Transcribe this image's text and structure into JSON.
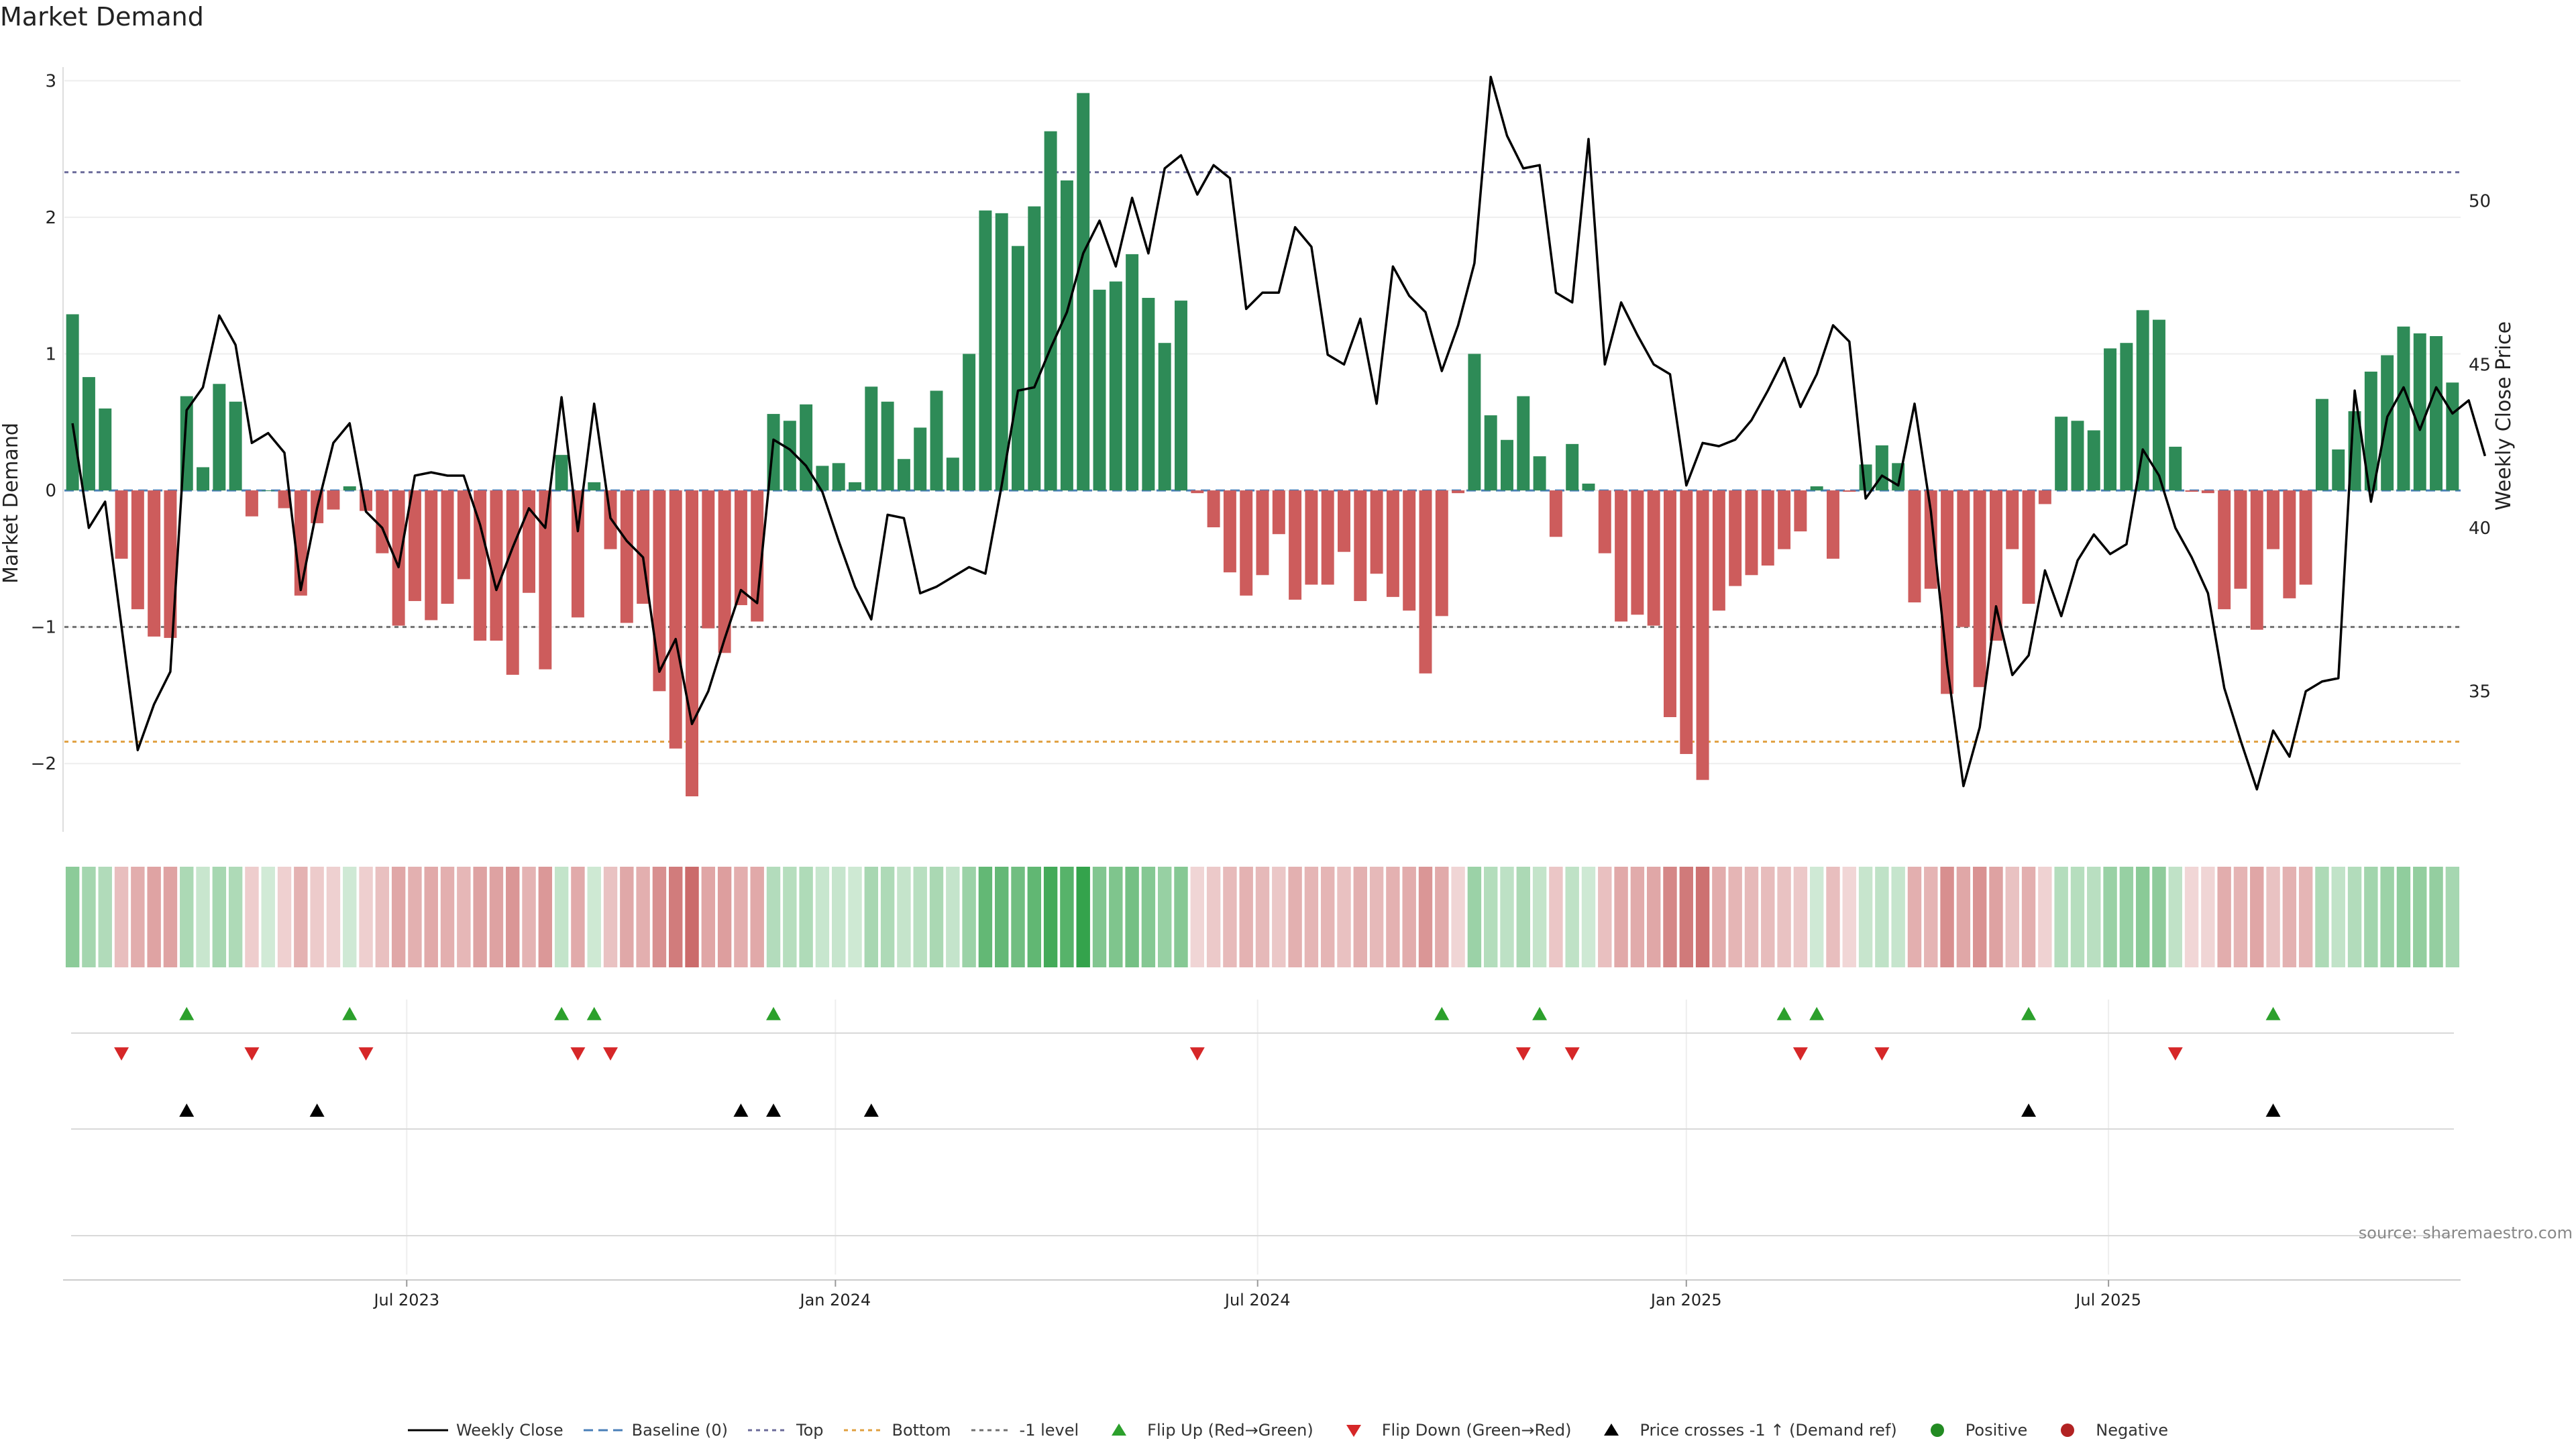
{
  "title": "Market Demand",
  "source": "source: sharemaestro.com",
  "colors": {
    "positive": "#2e8b57",
    "negative": "#cd5c5c",
    "price": "#000000",
    "baseline": "#4a7fb8",
    "top": "#6b6b9a",
    "bottom": "#e0a040",
    "minus_one": "#707070",
    "flip_up": "#2ca02c",
    "flip_down": "#d62728",
    "cross": "#000000",
    "dot_positive": "#228b22",
    "dot_negative": "#b22222"
  },
  "chart_data": {
    "type": "bar",
    "title": "Market Demand",
    "ylabel": "Market Demand",
    "y2label": "Weekly Close Price",
    "ylim": [
      -2.5,
      3.1
    ],
    "y2lim": [
      30.7,
      54.1
    ],
    "yticks": [
      -2,
      -1,
      0,
      1,
      2,
      3
    ],
    "y2ticks": [
      35,
      40,
      45,
      50
    ],
    "x_start_week": 0,
    "x_tick_labels": [
      {
        "label": "Jul 2023",
        "week": 20.5
      },
      {
        "label": "Jan 2024",
        "week": 46.8
      },
      {
        "label": "Jul 2024",
        "week": 72.7
      },
      {
        "label": "Jan 2025",
        "week": 99.0
      },
      {
        "label": "Jul 2025",
        "week": 124.9
      }
    ],
    "reference_lines": {
      "baseline": 0,
      "top": 2.33,
      "bottom": -1.84,
      "minus_one": -1.0
    },
    "series": [
      {
        "name": "Market Demand",
        "values": [
          1.29,
          0.83,
          0.6,
          -0.5,
          -0.87,
          -1.07,
          -1.08,
          0.69,
          0.17,
          0.78,
          0.65,
          -0.19,
          0.0,
          -0.13,
          -0.77,
          -0.24,
          -0.14,
          0.03,
          -0.15,
          -0.46,
          -0.99,
          -0.81,
          -0.95,
          -0.83,
          -0.65,
          -1.1,
          -1.1,
          -1.35,
          -0.75,
          -1.31,
          0.26,
          -0.93,
          0.06,
          -0.43,
          -0.97,
          -0.83,
          -1.47,
          -1.89,
          -2.24,
          -1.01,
          -1.19,
          -0.84,
          -0.96,
          0.56,
          0.51,
          0.63,
          0.18,
          0.2,
          0.06,
          0.76,
          0.65,
          0.23,
          0.46,
          0.73,
          0.24,
          1.0,
          2.05,
          2.03,
          1.79,
          2.08,
          2.63,
          2.27,
          2.91,
          1.47,
          1.53,
          1.73,
          1.41,
          1.08,
          1.39,
          -0.02,
          -0.27,
          -0.6,
          -0.77,
          -0.62,
          -0.32,
          -0.8,
          -0.69,
          -0.69,
          -0.45,
          -0.81,
          -0.61,
          -0.78,
          -0.88,
          -1.34,
          -0.92,
          -0.02,
          1.0,
          0.55,
          0.37,
          0.69,
          0.25,
          -0.34,
          0.34,
          0.05,
          -0.46,
          -0.96,
          -0.91,
          -0.99,
          -1.66,
          -1.93,
          -2.12,
          -0.88,
          -0.7,
          -0.62,
          -0.55,
          -0.43,
          -0.3,
          0.03,
          -0.5,
          -0.01,
          0.19,
          0.33,
          0.2,
          -0.82,
          -0.72,
          -1.49,
          -1.0,
          -1.44,
          -1.1,
          -0.43,
          -0.83,
          -0.1,
          0.54,
          0.51,
          0.44,
          1.04,
          1.08,
          1.32,
          1.25,
          0.32,
          -0.01,
          -0.02,
          -0.87,
          -0.72,
          -1.02,
          -0.43,
          -0.79,
          -0.69,
          0.67,
          0.3,
          0.58,
          0.87,
          0.99,
          1.2,
          1.15,
          1.13,
          0.79
        ]
      },
      {
        "name": "Weekly Close",
        "axis": "right",
        "values": [
          43.2,
          40.0,
          40.8,
          37.0,
          33.2,
          34.6,
          35.6,
          43.6,
          44.3,
          46.5,
          45.6,
          42.6,
          42.9,
          42.3,
          38.1,
          40.6,
          42.6,
          43.2,
          40.5,
          40.0,
          38.8,
          41.6,
          41.7,
          41.6,
          41.6,
          40.1,
          38.1,
          39.4,
          40.6,
          40.0,
          44.0,
          39.9,
          43.8,
          40.3,
          39.6,
          39.1,
          35.6,
          36.6,
          34.0,
          35.0,
          36.6,
          38.1,
          37.7,
          42.7,
          42.4,
          41.9,
          41.1,
          39.6,
          38.2,
          37.2,
          40.4,
          40.3,
          38.0,
          38.2,
          38.5,
          38.8,
          38.6,
          41.3,
          44.2,
          44.3,
          45.5,
          46.6,
          48.4,
          49.4,
          48.0,
          50.1,
          48.4,
          51.0,
          51.4,
          50.2,
          51.1,
          50.7,
          46.7,
          47.2,
          47.2,
          49.2,
          48.6,
          45.3,
          45.0,
          46.4,
          43.8,
          48.0,
          47.1,
          46.6,
          44.8,
          46.2,
          48.1,
          53.8,
          52.0,
          51.0,
          51.1,
          47.2,
          46.9,
          51.9,
          45.0,
          46.9,
          45.9,
          45.0,
          44.7,
          41.3,
          42.6,
          42.5,
          42.7,
          43.3,
          44.2,
          45.2,
          43.7,
          44.7,
          46.2,
          45.7,
          40.9,
          41.6,
          41.3,
          43.8,
          40.5,
          35.8,
          32.1,
          33.9,
          37.6,
          35.5,
          36.1,
          38.7,
          37.3,
          39.0,
          39.8,
          39.2,
          39.5,
          42.4,
          41.6,
          40.0,
          39.1,
          38.0,
          35.1,
          33.5,
          32.0,
          33.8,
          33.0,
          35.0,
          35.3,
          35.4,
          44.2,
          40.8,
          43.4,
          44.3,
          43.0,
          44.3,
          43.5,
          43.9,
          42.2
        ]
      }
    ],
    "signal_rows": {
      "flip_up_weeks": [
        7,
        17,
        30,
        32,
        43,
        84,
        90,
        105,
        107,
        120,
        135
      ],
      "flip_down_weeks": [
        3,
        11,
        18,
        31,
        33,
        69,
        89,
        92,
        106,
        111,
        129
      ],
      "price_cross_weeks": [
        7,
        15,
        41,
        43,
        49,
        120,
        135
      ],
      "row_labels": []
    },
    "legend": [
      {
        "key": "price",
        "label": "Weekly Close"
      },
      {
        "key": "baseline",
        "label": "Baseline (0)"
      },
      {
        "key": "top",
        "label": "Top"
      },
      {
        "key": "bottom",
        "label": "Bottom"
      },
      {
        "key": "minus_one",
        "label": "-1 level"
      },
      {
        "key": "flip_up",
        "label": "Flip Up (Red→Green)"
      },
      {
        "key": "flip_down",
        "label": "Flip Down (Green→Red)"
      },
      {
        "key": "cross",
        "label": "Price crosses -1 ↑ (Demand ref)"
      },
      {
        "key": "dot_positive",
        "label": "Positive"
      },
      {
        "key": "dot_negative",
        "label": "Negative"
      }
    ]
  }
}
